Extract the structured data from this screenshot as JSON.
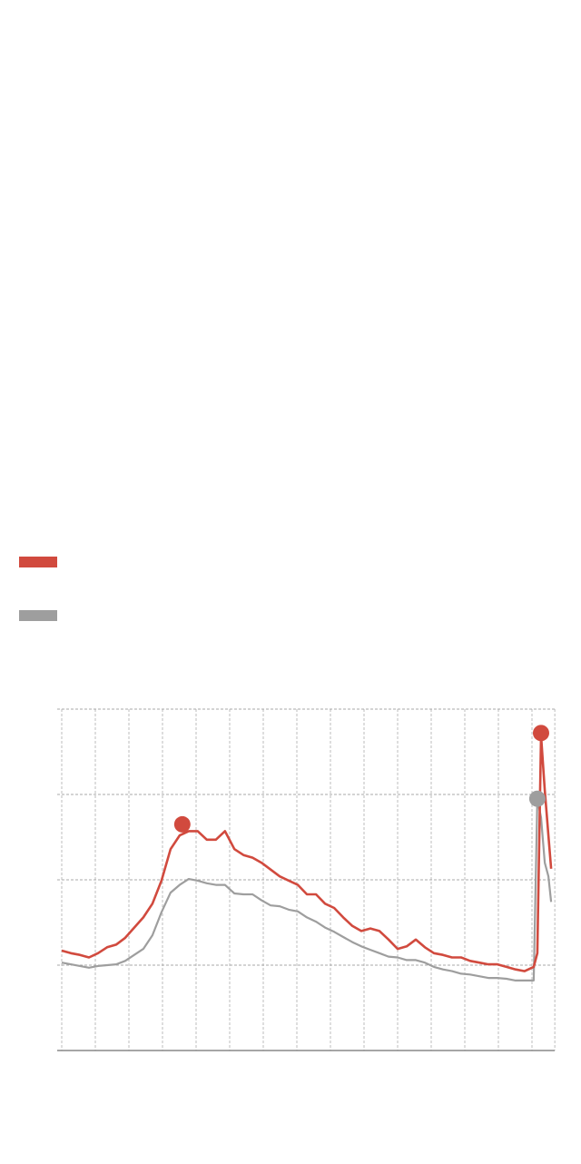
{
  "legend": {
    "items": [
      {
        "color": "#d14a3e"
      },
      {
        "color": "#9e9e9e"
      }
    ]
  },
  "chart_data": {
    "type": "line",
    "title": "",
    "xlabel": "",
    "ylabel": "",
    "xlim": [
      -0.14,
      14.68
    ],
    "ylim": [
      0,
      4
    ],
    "grid": true,
    "x_grid": [
      0,
      1,
      2,
      3,
      4,
      5,
      6,
      7,
      8,
      9,
      10,
      11,
      12,
      13,
      14,
      14.68
    ],
    "y_grid": [
      1,
      2,
      3,
      4
    ],
    "legend_position": "top-left",
    "x": [
      0,
      0.27,
      0.54,
      0.81,
      1.08,
      1.35,
      1.62,
      1.89,
      2.16,
      2.43,
      2.7,
      2.97,
      3.24,
      3.51,
      3.78,
      4.05,
      4.32,
      4.59,
      4.86,
      5.14,
      5.41,
      5.68,
      5.95,
      6.22,
      6.49,
      6.76,
      7.03,
      7.3,
      7.57,
      7.84,
      8.11,
      8.38,
      8.65,
      8.92,
      9.19,
      9.46,
      9.73,
      10,
      10.27,
      10.54,
      10.81,
      11.08,
      11.35,
      11.62,
      11.89,
      12.16,
      12.43,
      12.7,
      12.97,
      13.24,
      13.51,
      13.78,
      14.05,
      14.16,
      14.27,
      14.38,
      14.49,
      14.57
    ],
    "series": [
      {
        "color": "#d14a3e",
        "values": [
          1.17,
          1.14,
          1.12,
          1.09,
          1.14,
          1.21,
          1.24,
          1.32,
          1.44,
          1.56,
          1.72,
          1.99,
          2.36,
          2.52,
          2.57,
          2.57,
          2.47,
          2.47,
          2.57,
          2.36,
          2.29,
          2.26,
          2.2,
          2.12,
          2.04,
          1.99,
          1.94,
          1.83,
          1.83,
          1.72,
          1.67,
          1.56,
          1.46,
          1.4,
          1.43,
          1.4,
          1.3,
          1.19,
          1.22,
          1.3,
          1.21,
          1.14,
          1.12,
          1.09,
          1.09,
          1.05,
          1.03,
          1.01,
          1.01,
          0.98,
          0.95,
          0.93,
          0.98,
          1.14,
          3.69,
          3.05,
          2.52,
          2.13
        ],
        "markers": [
          {
            "x": 3.59,
            "y": 2.65
          },
          {
            "x": 14.27,
            "y": 3.72
          }
        ]
      },
      {
        "color": "#9e9e9e",
        "values": [
          1.03,
          1.01,
          0.99,
          0.97,
          0.99,
          1.0,
          1.01,
          1.05,
          1.12,
          1.19,
          1.35,
          1.62,
          1.85,
          1.94,
          2.01,
          1.99,
          1.96,
          1.94,
          1.94,
          1.84,
          1.83,
          1.83,
          1.76,
          1.7,
          1.69,
          1.65,
          1.63,
          1.56,
          1.51,
          1.44,
          1.39,
          1.33,
          1.27,
          1.22,
          1.18,
          1.14,
          1.1,
          1.09,
          1.06,
          1.06,
          1.03,
          0.98,
          0.95,
          0.93,
          0.9,
          0.89,
          0.87,
          0.85,
          0.85,
          0.84,
          0.82,
          0.82,
          0.82,
          2.95,
          2.73,
          2.2,
          2.04,
          1.74
        ],
        "markers": [
          {
            "x": 14.16,
            "y": 2.95
          }
        ]
      }
    ]
  }
}
